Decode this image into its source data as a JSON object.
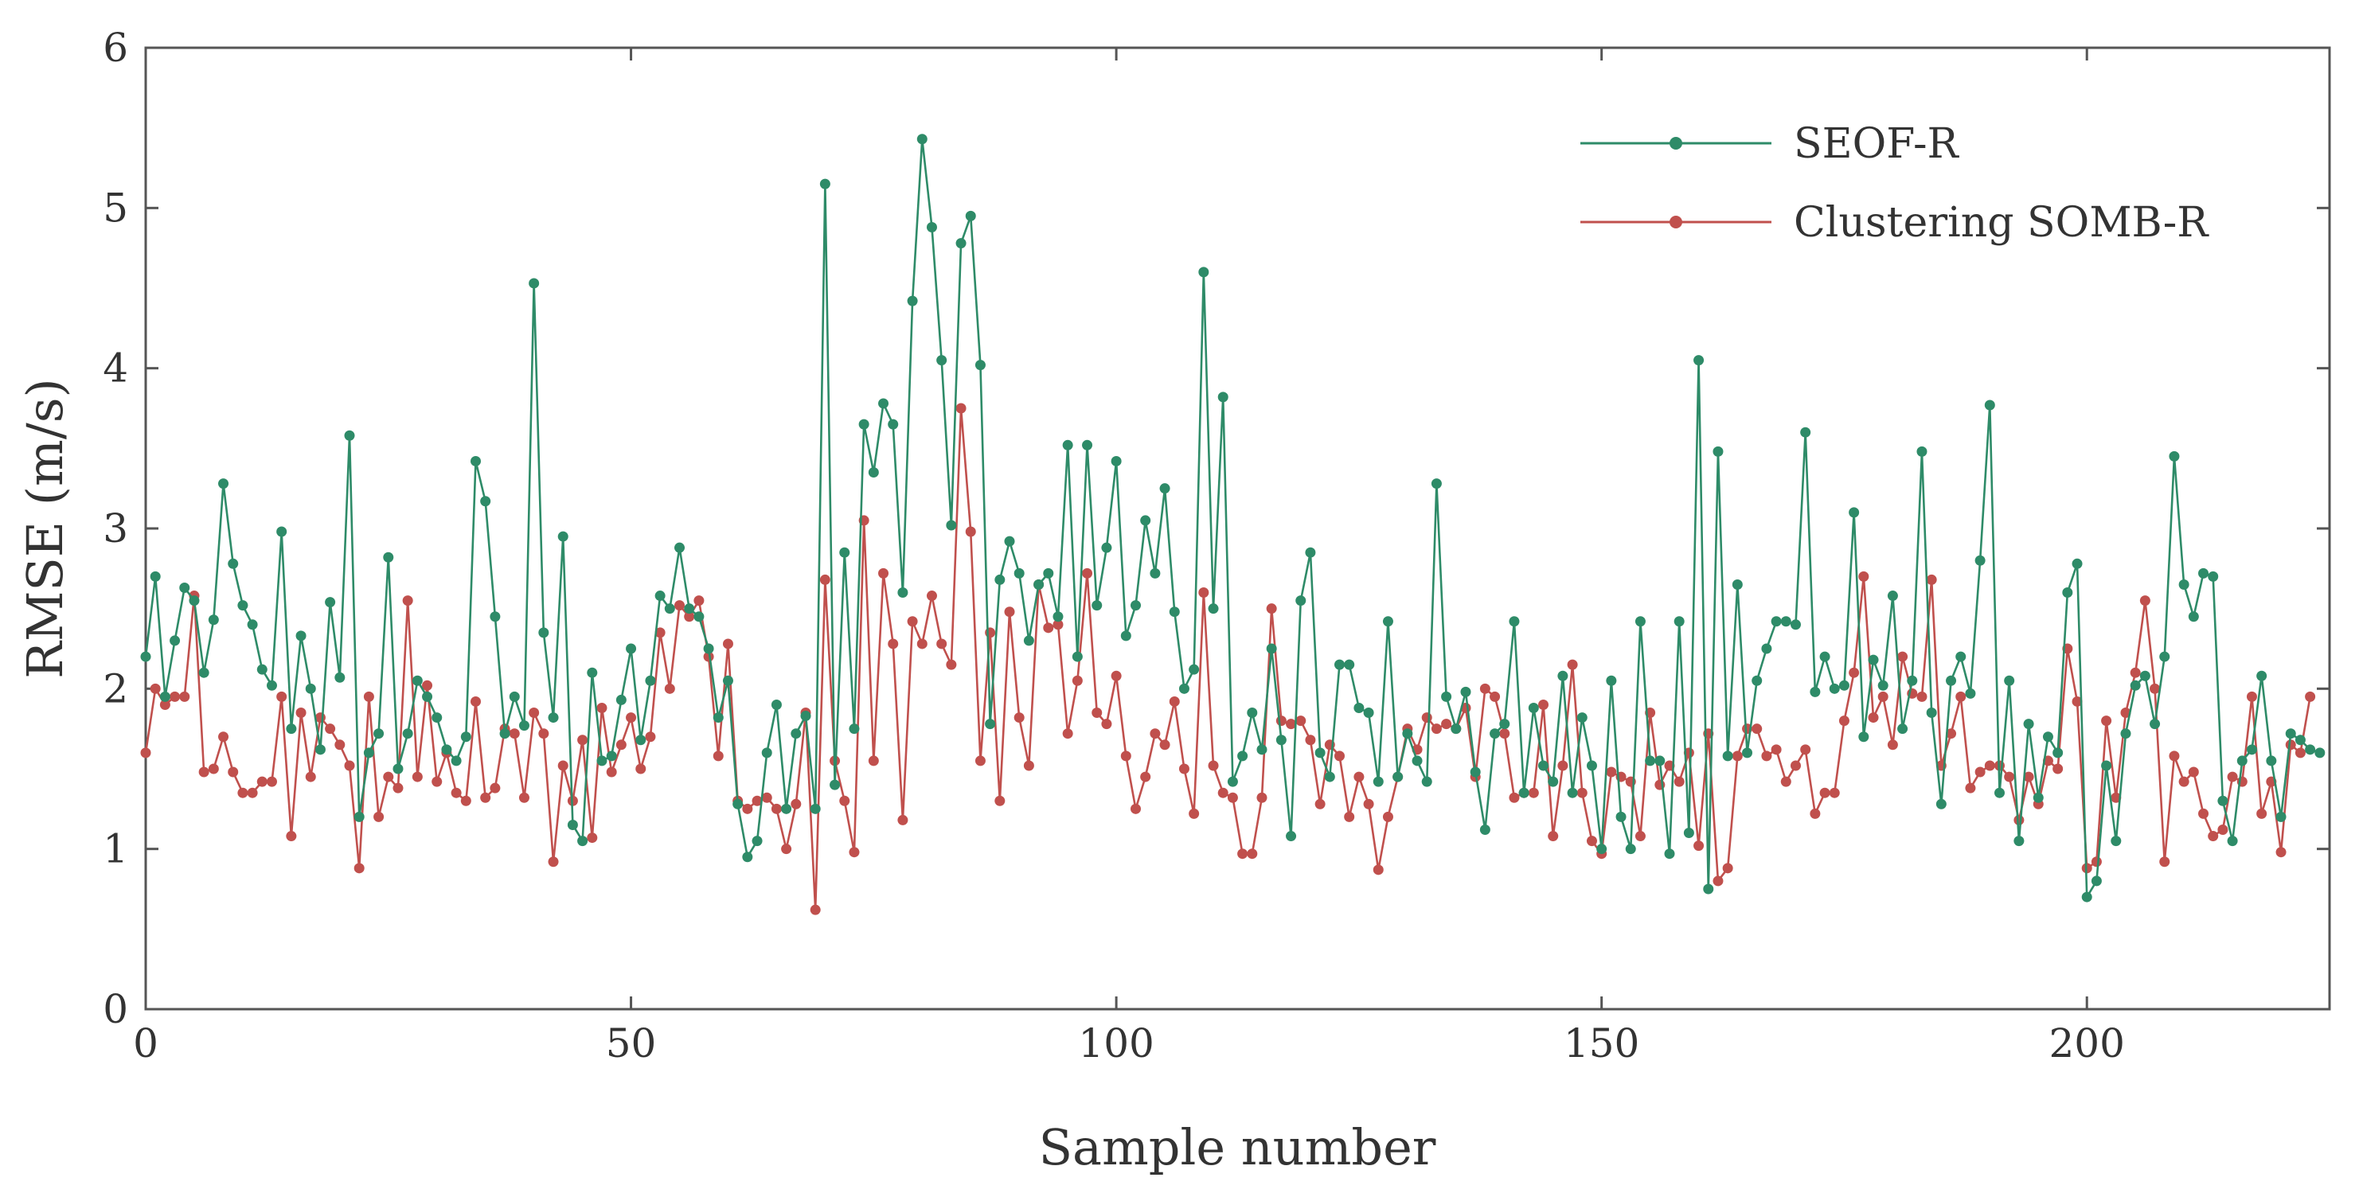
{
  "chart_data": {
    "type": "line",
    "title": "",
    "xlabel": "Sample number",
    "ylabel": "RMSE (m/s)",
    "xlim": [
      0,
      225
    ],
    "ylim": [
      0,
      6
    ],
    "xticks": [
      "0",
      "50",
      "100",
      "150",
      "200"
    ],
    "yticks": [
      "0",
      "1",
      "2",
      "3",
      "4",
      "5",
      "6"
    ],
    "grid": false,
    "legend_position": "top-right",
    "colors": {
      "SEOF-R": "#2e8b68",
      "Clustering SOMB-R": "#c0504d"
    },
    "series": [
      {
        "name": "SEOF-R",
        "values": [
          2.2,
          2.7,
          1.95,
          2.3,
          2.63,
          2.55,
          2.1,
          2.43,
          3.28,
          2.78,
          2.52,
          2.4,
          2.12,
          2.02,
          2.98,
          1.75,
          2.33,
          2.0,
          1.62,
          2.54,
          2.07,
          3.58,
          1.2,
          1.6,
          1.72,
          2.82,
          1.5,
          1.72,
          2.05,
          1.95,
          1.82,
          1.62,
          1.55,
          1.7,
          3.42,
          3.17,
          2.45,
          1.72,
          1.95,
          1.77,
          4.53,
          2.35,
          1.82,
          2.95,
          1.15,
          1.05,
          2.1,
          1.55,
          1.58,
          1.93,
          2.25,
          1.68,
          2.05,
          2.58,
          2.5,
          2.88,
          2.5,
          2.45,
          2.25,
          1.82,
          2.05,
          1.28,
          0.95,
          1.05,
          1.6,
          1.9,
          1.25,
          1.72,
          1.83,
          1.25,
          5.15,
          1.4,
          2.85,
          1.75,
          3.65,
          3.35,
          3.78,
          3.65,
          2.6,
          4.42,
          5.43,
          4.88,
          4.05,
          3.02,
          4.78,
          4.95,
          4.02,
          1.78,
          2.68,
          2.92,
          2.72,
          2.3,
          2.65,
          2.72,
          2.45,
          3.52,
          2.2,
          3.52,
          2.52,
          2.88,
          3.42,
          2.33,
          2.52,
          3.05,
          2.72,
          3.25,
          2.48,
          2.0,
          2.12,
          4.6,
          2.5,
          3.82,
          1.42,
          1.58,
          1.85,
          1.62,
          2.25,
          1.68,
          1.08,
          2.55,
          2.85,
          1.6,
          1.45,
          2.15,
          2.15,
          1.88,
          1.85,
          1.42,
          2.42,
          1.45,
          1.72,
          1.55,
          1.42,
          3.28,
          1.95,
          1.75,
          1.98,
          1.48,
          1.12,
          1.72,
          1.78,
          2.42,
          1.35,
          1.88,
          1.52,
          1.42,
          2.08,
          1.35,
          1.82,
          1.52,
          1.0,
          2.05,
          1.2,
          1.0,
          2.42,
          1.55,
          1.55,
          0.97,
          2.42,
          1.1,
          4.05,
          0.75,
          3.48,
          1.58,
          2.65,
          1.6,
          2.05,
          2.25,
          2.42,
          2.42,
          2.4,
          3.6,
          1.98,
          2.2,
          2.0,
          2.02,
          3.1,
          1.7,
          2.18,
          2.02,
          2.58,
          1.75,
          2.05,
          3.48,
          1.85,
          1.28,
          2.05,
          2.2,
          1.97,
          2.8,
          3.77,
          1.35,
          2.05,
          1.05,
          1.78,
          1.32,
          1.7,
          1.6,
          2.6,
          2.78,
          0.7,
          0.8,
          1.52,
          1.05,
          1.72,
          2.02,
          2.08,
          1.78,
          2.2,
          3.45,
          2.65,
          2.45,
          2.72,
          2.7,
          1.3,
          1.05,
          1.55,
          1.62,
          2.08,
          1.55,
          1.2,
          1.72,
          1.68,
          1.62,
          1.6
        ]
      },
      {
        "name": "Clustering SOMB-R",
        "values": [
          1.6,
          2.0,
          1.9,
          1.95,
          1.95,
          2.58,
          1.48,
          1.5,
          1.7,
          1.48,
          1.35,
          1.35,
          1.42,
          1.42,
          1.95,
          1.08,
          1.85,
          1.45,
          1.82,
          1.75,
          1.65,
          1.52,
          0.88,
          1.95,
          1.2,
          1.45,
          1.38,
          2.55,
          1.45,
          2.02,
          1.42,
          1.6,
          1.35,
          1.3,
          1.92,
          1.32,
          1.38,
          1.75,
          1.72,
          1.32,
          1.85,
          1.72,
          0.92,
          1.52,
          1.3,
          1.68,
          1.07,
          1.88,
          1.48,
          1.65,
          1.82,
          1.5,
          1.7,
          2.35,
          2.0,
          2.52,
          2.45,
          2.55,
          2.2,
          1.58,
          2.28,
          1.3,
          1.25,
          1.3,
          1.32,
          1.25,
          1.0,
          1.28,
          1.85,
          0.62,
          2.68,
          1.55,
          1.3,
          0.98,
          3.05,
          1.55,
          2.72,
          2.28,
          1.18,
          2.42,
          2.28,
          2.58,
          2.28,
          2.15,
          3.75,
          2.98,
          1.55,
          2.35,
          1.3,
          2.48,
          1.82,
          1.52,
          2.65,
          2.38,
          2.4,
          1.72,
          2.05,
          2.72,
          1.85,
          1.78,
          2.08,
          1.58,
          1.25,
          1.45,
          1.72,
          1.65,
          1.92,
          1.5,
          1.22,
          2.6,
          1.52,
          1.35,
          1.32,
          0.97,
          0.97,
          1.32,
          2.5,
          1.8,
          1.78,
          1.8,
          1.68,
          1.28,
          1.65,
          1.58,
          1.2,
          1.45,
          1.28,
          0.87,
          1.2,
          1.45,
          1.75,
          1.62,
          1.82,
          1.75,
          1.78,
          1.75,
          1.88,
          1.45,
          2.0,
          1.95,
          1.72,
          1.32,
          1.35,
          1.35,
          1.9,
          1.08,
          1.52,
          2.15,
          1.35,
          1.05,
          0.97,
          1.48,
          1.45,
          1.42,
          1.08,
          1.85,
          1.4,
          1.52,
          1.42,
          1.6,
          1.02,
          1.72,
          0.8,
          0.88,
          1.58,
          1.75,
          1.75,
          1.58,
          1.62,
          1.42,
          1.52,
          1.62,
          1.22,
          1.35,
          1.35,
          1.8,
          2.1,
          2.7,
          1.82,
          1.95,
          1.65,
          2.2,
          1.97,
          1.95,
          2.68,
          1.52,
          1.72,
          1.95,
          1.38,
          1.48,
          1.52,
          1.52,
          1.45,
          1.18,
          1.45,
          1.28,
          1.55,
          1.5,
          2.25,
          1.92,
          0.88,
          0.92,
          1.8,
          1.32,
          1.85,
          2.1,
          2.55,
          2.0,
          0.92,
          1.58,
          1.42,
          1.48,
          1.22,
          1.08,
          1.12,
          1.45,
          1.42,
          1.95,
          1.22,
          1.42,
          0.98,
          1.65,
          1.6,
          1.95
        ]
      }
    ]
  }
}
